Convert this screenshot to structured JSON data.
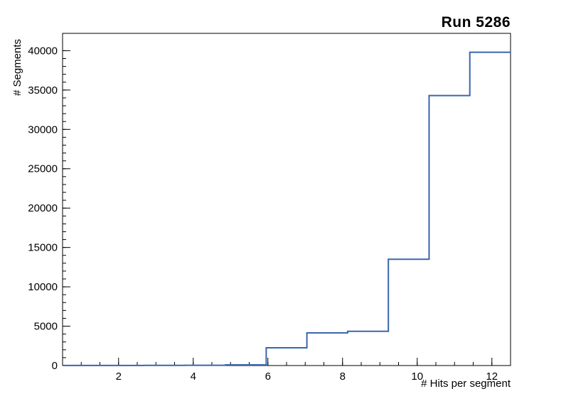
{
  "title": "Run 5286",
  "chart_data": {
    "type": "step-histogram",
    "title": "Run 5286",
    "xlabel": "# Hits per segment",
    "ylabel": "# Segments",
    "xlim": [
      0.5,
      12.5
    ],
    "ylim": [
      0,
      42200
    ],
    "grid": false,
    "legend": "none",
    "x_major_ticks": [
      2,
      4,
      6,
      8,
      10,
      12
    ],
    "x_minor_step": 0.5,
    "y_major_ticks": [
      0,
      5000,
      10000,
      15000,
      20000,
      25000,
      30000,
      35000,
      40000
    ],
    "y_minor_step": 1000,
    "bin_edges": [
      0.5,
      1.591,
      2.682,
      3.773,
      4.864,
      5.955,
      7.045,
      8.136,
      9.227,
      10.318,
      11.409,
      12.5
    ],
    "counts": [
      10,
      15,
      20,
      35,
      90,
      2250,
      4150,
      4350,
      13500,
      34300,
      39800
    ],
    "line_color": "#3a66ac",
    "frame_color": "#000000"
  }
}
